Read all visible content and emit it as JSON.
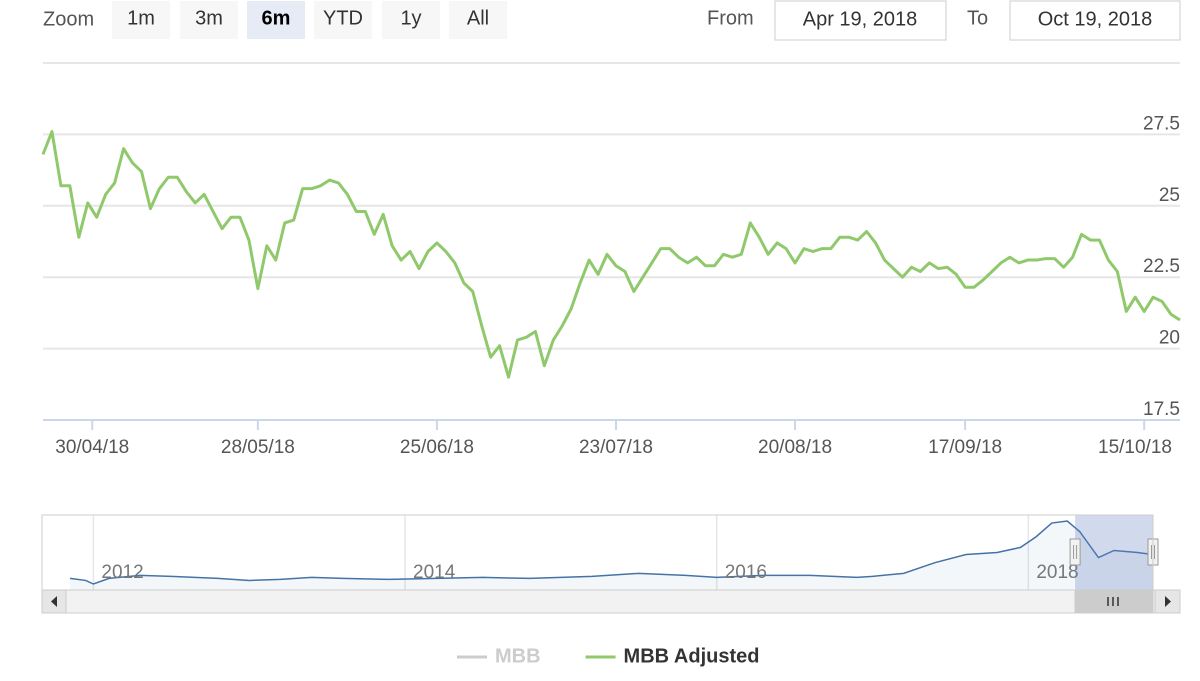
{
  "range_selector": {
    "label": "Zoom",
    "buttons": [
      "1m",
      "3m",
      "6m",
      "YTD",
      "1y",
      "All"
    ],
    "selected": 2,
    "from_label": "From",
    "from": "Apr 19, 2018",
    "to_label": "To",
    "to": "Oct 19, 2018"
  },
  "chart_data": [
    {
      "type": "line",
      "ordinal": true,
      "grid": true,
      "x": [
        "2018-04-19",
        "2018-04-20",
        "2018-04-23",
        "2018-04-24",
        "2018-04-26",
        "2018-04-27",
        "2018-05-02",
        "2018-05-03",
        "2018-05-04",
        "2018-05-07",
        "2018-05-08",
        "2018-05-09",
        "2018-05-10",
        "2018-05-11",
        "2018-05-14",
        "2018-05-15",
        "2018-05-16",
        "2018-05-17",
        "2018-05-18",
        "2018-05-21",
        "2018-05-22",
        "2018-05-23",
        "2018-05-24",
        "2018-05-25",
        "2018-05-28",
        "2018-05-29",
        "2018-05-30",
        "2018-05-31",
        "2018-06-01",
        "2018-06-04",
        "2018-06-05",
        "2018-06-06",
        "2018-06-07",
        "2018-06-08",
        "2018-06-11",
        "2018-06-12",
        "2018-06-13",
        "2018-06-14",
        "2018-06-15",
        "2018-06-18",
        "2018-06-19",
        "2018-06-20",
        "2018-06-21",
        "2018-06-22",
        "2018-06-25",
        "2018-06-26",
        "2018-06-27",
        "2018-06-28",
        "2018-06-29",
        "2018-07-02",
        "2018-07-03",
        "2018-07-04",
        "2018-07-05",
        "2018-07-06",
        "2018-07-09",
        "2018-07-10",
        "2018-07-11",
        "2018-07-12",
        "2018-07-13",
        "2018-07-16",
        "2018-07-17",
        "2018-07-18",
        "2018-07-19",
        "2018-07-20",
        "2018-07-23",
        "2018-07-24",
        "2018-07-25",
        "2018-07-26",
        "2018-07-27",
        "2018-07-30",
        "2018-07-31",
        "2018-08-01",
        "2018-08-02",
        "2018-08-03",
        "2018-08-06",
        "2018-08-07",
        "2018-08-08",
        "2018-08-09",
        "2018-08-10",
        "2018-08-13",
        "2018-08-14",
        "2018-08-15",
        "2018-08-16",
        "2018-08-17",
        "2018-08-20",
        "2018-08-21",
        "2018-08-22",
        "2018-08-23",
        "2018-08-24",
        "2018-08-27",
        "2018-08-28",
        "2018-08-29",
        "2018-08-30",
        "2018-08-31",
        "2018-09-04",
        "2018-09-05",
        "2018-09-06",
        "2018-09-07",
        "2018-09-10",
        "2018-09-11",
        "2018-09-12",
        "2018-09-13",
        "2018-09-14",
        "2018-09-17",
        "2018-09-18",
        "2018-09-19",
        "2018-09-20",
        "2018-09-21",
        "2018-09-24",
        "2018-09-25",
        "2018-09-26",
        "2018-09-27",
        "2018-09-28",
        "2018-10-01",
        "2018-10-02",
        "2018-10-03",
        "2018-10-04",
        "2018-10-05",
        "2018-10-08",
        "2018-10-09",
        "2018-10-10",
        "2018-10-11",
        "2018-10-12",
        "2018-10-15",
        "2018-10-16",
        "2018-10-17",
        "2018-10-18",
        "2018-10-19"
      ],
      "series": [
        {
          "name": "MBB",
          "color": "#cccccc",
          "visible": false
        },
        {
          "name": "MBB Adjusted",
          "color": "#90c96c",
          "values": [
            26.8,
            27.6,
            25.7,
            25.7,
            23.9,
            25.1,
            24.6,
            25.4,
            25.8,
            27.0,
            26.5,
            26.2,
            24.9,
            25.6,
            26.0,
            26.0,
            25.5,
            25.1,
            25.4,
            24.8,
            24.2,
            24.6,
            24.6,
            23.8,
            22.1,
            23.6,
            23.1,
            24.4,
            24.5,
            25.6,
            25.6,
            25.7,
            25.9,
            25.8,
            25.4,
            24.8,
            24.8,
            24.0,
            24.7,
            23.6,
            23.1,
            23.4,
            22.8,
            23.4,
            23.7,
            23.4,
            23.0,
            22.3,
            22.0,
            20.8,
            19.7,
            20.1,
            19.0,
            20.3,
            20.4,
            20.6,
            19.4,
            20.3,
            20.8,
            21.4,
            22.3,
            23.1,
            22.6,
            23.3,
            22.9,
            22.7,
            22.0,
            22.5,
            23.0,
            23.5,
            23.5,
            23.2,
            23.0,
            23.2,
            22.9,
            22.9,
            23.3,
            23.2,
            23.3,
            24.4,
            23.9,
            23.3,
            23.7,
            23.5,
            23.0,
            23.5,
            23.4,
            23.5,
            23.5,
            23.9,
            23.9,
            23.8,
            24.1,
            23.7,
            23.1,
            22.8,
            22.5,
            22.85,
            22.7,
            23.0,
            22.8,
            22.85,
            22.6,
            22.15,
            22.15,
            22.4,
            22.7,
            23.0,
            23.2,
            23.0,
            23.1,
            23.1,
            23.15,
            23.15,
            22.85,
            23.2,
            24.0,
            23.8,
            23.8,
            23.1,
            22.7,
            21.3,
            21.8,
            21.3,
            21.8,
            21.65,
            21.2,
            21.0
          ]
        }
      ],
      "ylim": [
        17.5,
        30
      ],
      "yticks": [
        17.5,
        20,
        22.5,
        25,
        27.5
      ],
      "xticks": [
        {
          "value": "2018-04-30",
          "label": "30/04/18"
        },
        {
          "value": "2018-05-28",
          "label": "28/05/18"
        },
        {
          "value": "2018-06-25",
          "label": "25/06/18"
        },
        {
          "value": "2018-07-23",
          "label": "23/07/18"
        },
        {
          "value": "2018-08-20",
          "label": "20/08/18"
        },
        {
          "value": "2018-09-17",
          "label": "17/09/18"
        },
        {
          "value": "2018-10-15",
          "label": "15/10/18"
        }
      ]
    },
    {
      "type": "area",
      "x": [
        2011.85,
        2011.95,
        2012.0,
        2012.1,
        2012.3,
        2012.5,
        2012.8,
        2013.0,
        2013.2,
        2013.4,
        2013.6,
        2013.9,
        2014.2,
        2014.5,
        2014.8,
        2015.0,
        2015.2,
        2015.5,
        2015.8,
        2016.0,
        2016.3,
        2016.6,
        2016.9,
        2017.0,
        2017.2,
        2017.4,
        2017.6,
        2017.8,
        2017.95,
        2018.05,
        2018.15,
        2018.25,
        2018.33,
        2018.45,
        2018.55,
        2018.7,
        2018.8
      ],
      "series": [
        {
          "color": "#4572a7",
          "values": [
            16.3,
            15.9,
            15.2,
            16.3,
            16.9,
            16.7,
            16.3,
            15.9,
            16.1,
            16.5,
            16.3,
            16.1,
            16.3,
            16.5,
            16.3,
            16.5,
            16.7,
            17.3,
            16.9,
            16.5,
            16.9,
            16.9,
            16.5,
            16.7,
            17.3,
            19.4,
            21.0,
            21.4,
            22.4,
            24.5,
            27.2,
            27.6,
            25.5,
            20.4,
            21.8,
            21.4,
            21.0
          ]
        }
      ],
      "xlim": [
        2011.67,
        2018.8
      ],
      "xticks": [
        2012,
        2014,
        2016,
        2018
      ],
      "selection": [
        2018.3,
        2018.8
      ]
    }
  ]
}
